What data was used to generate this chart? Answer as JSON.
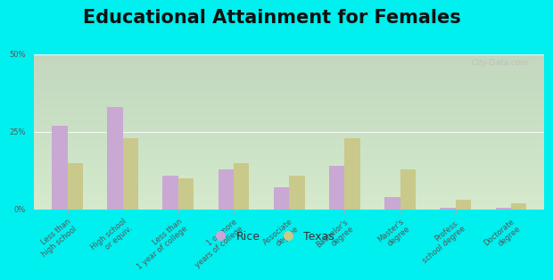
{
  "title": "Educational Attainment for Females",
  "categories": [
    "Less than\nhigh school",
    "High school\nor equiv.",
    "Less than\n1 year of college",
    "1 or more\nyears of college",
    "Associate\ndegree",
    "Bachelor's\ndegree",
    "Master's\ndegree",
    "Profess.\nschool degree",
    "Doctorate\ndegree"
  ],
  "rice_values": [
    27,
    33,
    11,
    13,
    7,
    14,
    4,
    0.5,
    0.5
  ],
  "texas_values": [
    15,
    23,
    10,
    15,
    11,
    23,
    13,
    3,
    2
  ],
  "rice_color": "#c9a8d4",
  "texas_color": "#c8c98a",
  "background_color": "#00efef",
  "plot_bg_color": "#e8f0dc",
  "ylim": [
    0,
    50
  ],
  "yticks": [
    0,
    25,
    50
  ],
  "ytick_labels": [
    "0%",
    "25%",
    "50%"
  ],
  "bar_width": 0.28,
  "legend_labels": [
    "Rice",
    "Texas"
  ],
  "watermark": "City-Data.com",
  "title_fontsize": 15,
  "tick_fontsize": 6.0,
  "legend_fontsize": 9
}
